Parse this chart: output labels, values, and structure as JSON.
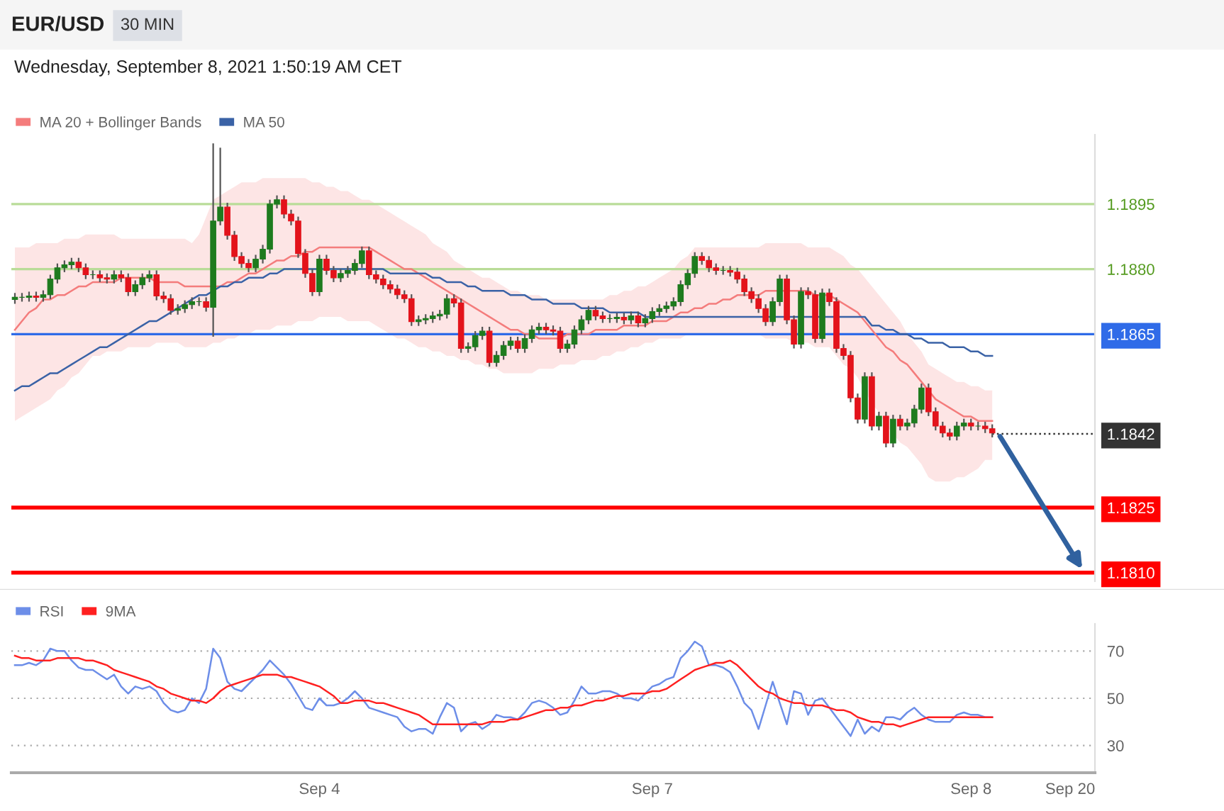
{
  "chart_data": [
    {
      "type": "candlestick",
      "title": "EUR/USD",
      "subtitle": "Wednesday, September 8, 2021 1:50:19 AM CET",
      "annotations": [
        "30 MIN"
      ],
      "categories": [
        null,
        null,
        null,
        null,
        null,
        null,
        null,
        null,
        null,
        null,
        null,
        null,
        null,
        null,
        null,
        null,
        null,
        null,
        null,
        null,
        null,
        null,
        null,
        null,
        null,
        null,
        null,
        null,
        null,
        null,
        null,
        null,
        null,
        null,
        null,
        null,
        null,
        null,
        null,
        null,
        null,
        null,
        null,
        null,
        null,
        null,
        null,
        null,
        null,
        null,
        null,
        null,
        null,
        null,
        null,
        null,
        null,
        null,
        null,
        null,
        null,
        null,
        null,
        null,
        null,
        null,
        null,
        null,
        null,
        null,
        null,
        null,
        null,
        null,
        null,
        null,
        null,
        null,
        null,
        null,
        null,
        null,
        null,
        null,
        null,
        null,
        null,
        null,
        null,
        null,
        null,
        null,
        null,
        null,
        null,
        null,
        null,
        null,
        null,
        null,
        null,
        null,
        null,
        null,
        null,
        null,
        null,
        null,
        null,
        null,
        null,
        null,
        null,
        null,
        null,
        null,
        null,
        null,
        null,
        null,
        null,
        null,
        null,
        null,
        null,
        null,
        null,
        null,
        null,
        null,
        null,
        null,
        null,
        null,
        null,
        null,
        null,
        null,
        null,
        null,
        null,
        null,
        null,
        null,
        null,
        null,
        null,
        null,
        null,
        null,
        null,
        null,
        null
      ],
      "colors": [
        "#1e7b1e",
        "#1e7b1e",
        "#1e7b1e",
        "#e3131b",
        "#1e7b1e",
        "#1e7b1e",
        "#1e7b1e",
        "#1e7b1e",
        "#1e7b1e",
        "#e3131b",
        "#e3131b",
        "#1e7b1e",
        "#e3131b",
        "#e3131b",
        "#1e7b1e",
        "#e3131b",
        "#e3131b",
        "#1e7b1e",
        "#1e7b1e",
        "#1e7b1e",
        "#e3131b",
        "#e3131b",
        "#e3131b",
        "#1e7b1e",
        "#1e7b1e",
        "#1e7b1e",
        "#1e7b1e",
        "#e3131b",
        "#1e7b1e",
        "#1e7b1e",
        "#e3131b",
        "#e3131b",
        "#e3131b",
        "#e3131b",
        "#1e7b1e",
        "#1e7b1e",
        "#1e7b1e",
        "#1e7b1e",
        "#e3131b",
        "#e3131b",
        "#e3131b",
        "#e3131b",
        "#e3131b",
        "#1e7b1e",
        "#e3131b",
        "#e3131b",
        "#1e7b1e",
        "#1e7b1e",
        "#1e7b1e",
        "#1e7b1e",
        "#e3131b",
        "#e3131b",
        "#e3131b",
        "#e3131b",
        "#e3131b",
        "#e3131b",
        "#e3131b",
        "#1e7b1e",
        "#1e7b1e",
        "#1e7b1e",
        "#1e7b1e",
        "#1e7b1e",
        "#e3131b",
        "#e3131b",
        "#1e7b1e",
        "#1e7b1e",
        "#1e7b1e",
        "#e3131b",
        "#1e7b1e",
        "#1e7b1e",
        "#1e7b1e",
        "#e3131b",
        "#1e7b1e",
        "#1e7b1e",
        "#1e7b1e",
        "#e3131b",
        "#e3131b",
        "#e3131b",
        "#1e7b1e",
        "#1e7b1e",
        "#1e7b1e",
        "#1e7b1e",
        "#e3131b",
        "#e3131b",
        "#1e7b1e",
        "#1e7b1e",
        "#e3131b",
        "#1e7b1e",
        "#e3131b",
        "#1e7b1e",
        "#1e7b1e",
        "#1e7b1e",
        "#1e7b1e",
        "#1e7b1e",
        "#1e7b1e",
        "#1e7b1e",
        "#1e7b1e",
        "#e3131b",
        "#e3131b",
        "#e3131b",
        "#1e7b1e",
        "#e3131b",
        "#e3131b",
        "#e3131b",
        "#e3131b",
        "#e3131b",
        "#e3131b",
        "#1e7b1e",
        "#1e7b1e",
        "#e3131b",
        "#e3131b",
        "#1e7b1e",
        "#e3131b",
        "#e3131b",
        "#1e7b1e",
        "#e3131b",
        "#e3131b",
        "#e3131b",
        "#e3131b",
        "#e3131b",
        "#1e7b1e",
        "#e3131b",
        "#1e7b1e",
        "#e3131b",
        "#1e7b1e",
        "#e3131b",
        "#1e7b1e",
        "#1e7b1e",
        "#1e7b1e",
        "#e3131b",
        "#e3131b",
        "#e3131b",
        "#e3131b",
        "#1e7b1e",
        "#1e7b1e",
        "#e3131b",
        "#1e7b1e",
        "#e3131b",
        "#e3131b",
        null,
        null,
        null,
        null,
        null,
        null,
        null,
        null,
        null,
        null,
        null,
        null,
        null,
        null
      ],
      "ohlc": [
        [
          1.1873,
          1.18745,
          1.1872,
          1.18735
        ],
        [
          1.18735,
          1.18745,
          1.18725,
          1.18735
        ],
        [
          1.18735,
          1.18748,
          1.18725,
          1.18738
        ],
        [
          1.18738,
          1.18748,
          1.18725,
          1.18735
        ],
        [
          1.18735,
          1.18751,
          1.18725,
          1.18741
        ],
        [
          1.18741,
          1.18787,
          1.18731,
          1.18777
        ],
        [
          1.18777,
          1.18813,
          1.18767,
          1.18803
        ],
        [
          1.18803,
          1.1882,
          1.18793,
          1.1881
        ],
        [
          1.1881,
          1.18826,
          1.188,
          1.18816
        ],
        [
          1.18816,
          1.18826,
          1.18793,
          1.18803
        ],
        [
          1.18803,
          1.18813,
          1.18777,
          1.18787
        ],
        [
          1.18787,
          1.18797,
          1.18777,
          1.18787
        ],
        [
          1.18787,
          1.18797,
          1.1877,
          1.1878
        ],
        [
          1.1878,
          1.1879,
          1.18767,
          1.18777
        ],
        [
          1.18777,
          1.18797,
          1.18767,
          1.18787
        ],
        [
          1.18787,
          1.18797,
          1.1877,
          1.1878
        ],
        [
          1.1878,
          1.1879,
          1.18738,
          1.18748
        ],
        [
          1.18748,
          1.18774,
          1.18738,
          1.18764
        ],
        [
          1.18764,
          1.1879,
          1.18754,
          1.1878
        ],
        [
          1.1878,
          1.18797,
          1.1877,
          1.18787
        ],
        [
          1.18787,
          1.18797,
          1.18728,
          1.18738
        ],
        [
          1.18738,
          1.18748,
          1.18722,
          1.18732
        ],
        [
          1.18732,
          1.18742,
          1.18695,
          1.18705
        ],
        [
          1.18705,
          1.18719,
          1.18695,
          1.18709
        ],
        [
          1.18709,
          1.18728,
          1.18699,
          1.18718
        ],
        [
          1.18718,
          1.18735,
          1.18708,
          1.18725
        ],
        [
          1.18725,
          1.18735,
          1.18715,
          1.18725
        ],
        [
          1.18725,
          1.18735,
          1.18702,
          1.18712
        ],
        [
          1.18712,
          1.1909,
          1.18644,
          1.18911
        ],
        [
          1.18911,
          1.1908,
          1.18901,
          1.18943
        ],
        [
          1.18943,
          1.18953,
          1.18868,
          1.18878
        ],
        [
          1.18878,
          1.18888,
          1.18819,
          1.18829
        ],
        [
          1.18829,
          1.18839,
          1.18803,
          1.18813
        ],
        [
          1.18813,
          1.18823,
          1.18793,
          1.18803
        ],
        [
          1.18803,
          1.18833,
          1.18793,
          1.18823
        ],
        [
          1.18823,
          1.18856,
          1.18813,
          1.18846
        ],
        [
          1.18846,
          1.1896,
          1.18836,
          1.1895
        ],
        [
          1.1895,
          1.1897,
          1.1894,
          1.1896
        ],
        [
          1.1896,
          1.1897,
          1.18917,
          1.18927
        ],
        [
          1.18927,
          1.18937,
          1.18901,
          1.18911
        ],
        [
          1.18911,
          1.18921,
          1.18826,
          1.18836
        ],
        [
          1.18836,
          1.18846,
          1.1878,
          1.1879
        ],
        [
          1.1879,
          1.188,
          1.18738,
          1.18748
        ],
        [
          1.18748,
          1.18833,
          1.18738,
          1.18823
        ],
        [
          1.18823,
          1.18833,
          1.18787,
          1.18797
        ],
        [
          1.18797,
          1.18807,
          1.1877,
          1.1878
        ],
        [
          1.1878,
          1.188,
          1.1877,
          1.1879
        ],
        [
          1.1879,
          1.18807,
          1.1878,
          1.18797
        ],
        [
          1.18797,
          1.18823,
          1.18787,
          1.18813
        ],
        [
          1.18813,
          1.18852,
          1.18803,
          1.18842
        ],
        [
          1.18842,
          1.18852,
          1.18777,
          1.18787
        ],
        [
          1.18787,
          1.18797,
          1.18767,
          1.18777
        ],
        [
          1.18777,
          1.18787,
          1.18754,
          1.18764
        ],
        [
          1.18764,
          1.18774,
          1.18744,
          1.18754
        ],
        [
          1.18754,
          1.18764,
          1.18731,
          1.18741
        ],
        [
          1.18741,
          1.18751,
          1.18722,
          1.18732
        ],
        [
          1.18732,
          1.18742,
          1.18669,
          1.18679
        ],
        [
          1.18679,
          1.18693,
          1.18669,
          1.18683
        ],
        [
          1.18683,
          1.18696,
          1.18673,
          1.18686
        ],
        [
          1.18686,
          1.18702,
          1.18676,
          1.18692
        ],
        [
          1.18692,
          1.18706,
          1.18682,
          1.18696
        ],
        [
          1.18696,
          1.18742,
          1.18686,
          1.18732
        ],
        [
          1.18732,
          1.18742,
          1.18712,
          1.18722
        ],
        [
          1.18722,
          1.18732,
          1.18607,
          1.18617
        ],
        [
          1.18617,
          1.18631,
          1.18607,
          1.18621
        ],
        [
          1.18621,
          1.18657,
          1.18611,
          1.18647
        ],
        [
          1.18647,
          1.18667,
          1.18637,
          1.18657
        ],
        [
          1.18657,
          1.18667,
          1.18575,
          1.18585
        ],
        [
          1.18585,
          1.18611,
          1.18575,
          1.18601
        ],
        [
          1.18601,
          1.18634,
          1.18591,
          1.18624
        ],
        [
          1.18624,
          1.18644,
          1.18614,
          1.18634
        ],
        [
          1.18634,
          1.18644,
          1.18607,
          1.18617
        ],
        [
          1.18617,
          1.1865,
          1.18607,
          1.1864
        ],
        [
          1.1864,
          1.1867,
          1.1863,
          1.1866
        ],
        [
          1.1866,
          1.18676,
          1.1865,
          1.18666
        ],
        [
          1.18666,
          1.18676,
          1.1865,
          1.1866
        ],
        [
          1.1866,
          1.1867,
          1.18647,
          1.18657
        ],
        [
          1.18657,
          1.18667,
          1.18607,
          1.18617
        ],
        [
          1.18617,
          1.18637,
          1.18607,
          1.18627
        ],
        [
          1.18627,
          1.1867,
          1.18617,
          1.1866
        ],
        [
          1.1866,
          1.18693,
          1.1865,
          1.18683
        ],
        [
          1.18683,
          1.18715,
          1.18673,
          1.18705
        ],
        [
          1.18705,
          1.18715,
          1.18682,
          1.18692
        ],
        [
          1.18692,
          1.18702,
          1.18676,
          1.18686
        ],
        [
          1.18686,
          1.18696,
          1.18676,
          1.18686
        ],
        [
          1.18686,
          1.18699,
          1.18676,
          1.18689
        ],
        [
          1.18689,
          1.18699,
          1.18673,
          1.18683
        ],
        [
          1.18683,
          1.18702,
          1.18673,
          1.18692
        ],
        [
          1.18692,
          1.18702,
          1.18666,
          1.18676
        ],
        [
          1.18676,
          1.18696,
          1.18666,
          1.18686
        ],
        [
          1.18686,
          1.18712,
          1.18676,
          1.18702
        ],
        [
          1.18702,
          1.18719,
          1.18692,
          1.18709
        ],
        [
          1.18709,
          1.18725,
          1.18699,
          1.18715
        ],
        [
          1.18715,
          1.18735,
          1.18705,
          1.18725
        ],
        [
          1.18725,
          1.18774,
          1.18715,
          1.18764
        ],
        [
          1.18764,
          1.188,
          1.18754,
          1.1879
        ],
        [
          1.1879,
          1.18839,
          1.1878,
          1.18829
        ],
        [
          1.18829,
          1.18839,
          1.1881,
          1.1882
        ],
        [
          1.1882,
          1.1883,
          1.18793,
          1.18803
        ],
        [
          1.18803,
          1.18813,
          1.18787,
          1.18797
        ],
        [
          1.18797,
          1.18807,
          1.18787,
          1.18797
        ],
        [
          1.18797,
          1.18807,
          1.18783,
          1.18793
        ],
        [
          1.18793,
          1.18803,
          1.18767,
          1.18777
        ],
        [
          1.18777,
          1.18787,
          1.18738,
          1.18748
        ],
        [
          1.18748,
          1.18758,
          1.18722,
          1.18732
        ],
        [
          1.18732,
          1.18742,
          1.18699,
          1.18709
        ],
        [
          1.18709,
          1.18719,
          1.18669,
          1.18679
        ],
        [
          1.18679,
          1.18735,
          1.18669,
          1.18725
        ],
        [
          1.18725,
          1.18787,
          1.18715,
          1.18777
        ],
        [
          1.18777,
          1.18787,
          1.18673,
          1.18683
        ],
        [
          1.18683,
          1.18693,
          1.18617,
          1.18627
        ],
        [
          1.18627,
          1.18758,
          1.18617,
          1.18748
        ],
        [
          1.18748,
          1.18758,
          1.18731,
          1.18741
        ],
        [
          1.18741,
          1.18751,
          1.1863,
          1.1864
        ],
        [
          1.1864,
          1.18755,
          1.1863,
          1.18745
        ],
        [
          1.18745,
          1.18755,
          1.18715,
          1.18725
        ],
        [
          1.18725,
          1.18735,
          1.18607,
          1.18617
        ],
        [
          1.18617,
          1.18627,
          1.18591,
          1.18601
        ],
        [
          1.18601,
          1.18611,
          1.18493,
          1.18503
        ],
        [
          1.18503,
          1.18513,
          1.18444,
          1.18454
        ],
        [
          1.18454,
          1.18562,
          1.18444,
          1.18552
        ],
        [
          1.18552,
          1.18562,
          1.18428,
          1.18438
        ],
        [
          1.18438,
          1.18471,
          1.18428,
          1.18461
        ],
        [
          1.18461,
          1.18471,
          1.18389,
          1.18399
        ],
        [
          1.18399,
          1.18464,
          1.18389,
          1.18454
        ],
        [
          1.18454,
          1.18464,
          1.18428,
          1.18438
        ],
        [
          1.18438,
          1.18455,
          1.18428,
          1.18445
        ],
        [
          1.18445,
          1.18487,
          1.18435,
          1.18477
        ],
        [
          1.18477,
          1.18536,
          1.18467,
          1.18526
        ],
        [
          1.18526,
          1.18536,
          1.18461,
          1.18471
        ],
        [
          1.18471,
          1.18481,
          1.18428,
          1.18438
        ],
        [
          1.18438,
          1.18448,
          1.18412,
          1.18422
        ],
        [
          1.18422,
          1.18432,
          1.18405,
          1.18415
        ],
        [
          1.18415,
          1.18448,
          1.18405,
          1.18438
        ],
        [
          1.18438,
          1.18455,
          1.18428,
          1.18445
        ],
        [
          1.18445,
          1.18455,
          1.18428,
          1.18438
        ],
        [
          1.18438,
          1.18448,
          1.18428,
          1.18438
        ],
        [
          1.18438,
          1.18448,
          1.18422,
          1.18432
        ],
        [
          1.18432,
          1.18442,
          1.18412,
          1.18422
        ],
        null,
        null,
        null,
        null,
        null,
        null,
        null,
        null,
        null,
        null,
        null,
        null,
        null,
        null
      ],
      "series": [
        {
          "type": "line",
          "name": "MA 20 + Bollinger Bands",
          "color": "#f47c7c",
          "values": [
            1.1866,
            1.1868,
            1.187,
            1.1871,
            1.1873,
            1.1873,
            1.1874,
            1.1874,
            1.1875,
            1.1876,
            1.1876,
            1.1877,
            1.1877,
            1.1877,
            1.1877,
            1.1878,
            1.1878,
            1.1878,
            1.1878,
            1.1878,
            1.1877,
            1.1877,
            1.1877,
            1.1877,
            1.1876,
            1.1876,
            1.1876,
            1.1876,
            1.1876,
            1.1876,
            1.1877,
            1.1877,
            1.1878,
            1.1879,
            1.1879,
            1.188,
            1.1881,
            1.1882,
            1.1882,
            1.1883,
            1.1883,
            1.1884,
            1.1884,
            1.1885,
            1.1885,
            1.1885,
            1.1885,
            1.1885,
            1.1885,
            1.1885,
            1.1885,
            1.1884,
            1.1883,
            1.1882,
            1.1881,
            1.188,
            1.188,
            1.1879,
            1.1878,
            1.1877,
            1.1876,
            1.1875,
            1.1874,
            1.1873,
            1.1872,
            1.1871,
            1.187,
            1.1869,
            1.1868,
            1.1867,
            1.1866,
            1.1866,
            1.1865,
            1.1865,
            1.1864,
            1.1864,
            1.1864,
            1.1864,
            1.1865,
            1.1865,
            1.1865,
            1.1865,
            1.1866,
            1.1866,
            1.1866,
            1.1866,
            1.1867,
            1.1867,
            1.1867,
            1.1867,
            1.1868,
            1.1868,
            1.1868,
            1.1869,
            1.187,
            1.187,
            1.1871,
            1.1871,
            1.1872,
            1.1872,
            1.1873,
            1.1873,
            1.1874,
            1.1874,
            1.1874,
            1.1874,
            1.1875,
            1.1875,
            1.1875,
            1.1875,
            1.1875,
            1.1875,
            1.1875,
            1.1874,
            1.1874,
            1.1874,
            1.1873,
            1.1872,
            1.1871,
            1.187,
            1.1868,
            1.1866,
            1.1864,
            1.1862,
            1.1861,
            1.1859,
            1.1858,
            1.1856,
            1.1854,
            1.1852,
            1.185,
            1.1849,
            1.1848,
            1.1847,
            1.1846,
            1.1846,
            1.1845,
            1.1845,
            1.1845,
            null,
            null,
            null,
            null,
            null,
            null,
            null,
            null,
            null,
            null,
            null,
            null,
            null,
            null
          ],
          "upper": [
            1.1885,
            1.1885,
            1.1885,
            1.1886,
            1.1886,
            1.1886,
            1.1886,
            1.1887,
            1.1887,
            1.1887,
            1.1888,
            1.1888,
            1.1888,
            1.1888,
            1.1888,
            1.1887,
            1.1887,
            1.1887,
            1.1887,
            1.1887,
            1.1887,
            1.1887,
            1.1887,
            1.1887,
            1.1887,
            1.1886,
            1.1888,
            1.1892,
            1.1896,
            1.1897,
            1.1898,
            1.1899,
            1.19,
            1.19,
            1.19,
            1.1901,
            1.1901,
            1.1901,
            1.1901,
            1.1901,
            1.1901,
            1.1901,
            1.19,
            1.19,
            1.1899,
            1.1899,
            1.1898,
            1.1898,
            1.1897,
            1.1896,
            1.1896,
            1.1895,
            1.1894,
            1.1893,
            1.1892,
            1.1891,
            1.189,
            1.1889,
            1.1888,
            1.1886,
            1.1885,
            1.1884,
            1.1882,
            1.1881,
            1.188,
            1.1879,
            1.1878,
            1.1878,
            1.1877,
            1.1876,
            1.1875,
            1.1875,
            1.1874,
            1.1874,
            1.1874,
            1.1873,
            1.1873,
            1.1873,
            1.1873,
            1.1873,
            1.1873,
            1.1873,
            1.1873,
            1.1873,
            1.1874,
            1.1874,
            1.1875,
            1.1875,
            1.1876,
            1.1876,
            1.1877,
            1.1878,
            1.1879,
            1.188,
            1.1882,
            1.1883,
            1.1885,
            1.1885,
            1.1885,
            1.1885,
            1.1885,
            1.1885,
            1.1885,
            1.1885,
            1.1885,
            1.1885,
            1.1886,
            1.1886,
            1.1886,
            1.1886,
            1.1886,
            1.1886,
            1.1885,
            1.1885,
            1.1885,
            1.1885,
            1.1884,
            1.1883,
            1.1881,
            1.188,
            1.1878,
            1.1876,
            1.1874,
            1.1872,
            1.187,
            1.1868,
            1.1865,
            1.1863,
            1.1861,
            1.1858,
            1.1857,
            1.1856,
            1.1855,
            1.1854,
            1.1854,
            1.1853,
            1.1853,
            1.1852,
            1.1852,
            null,
            null,
            null,
            null,
            null,
            null,
            null,
            null,
            null,
            null,
            null,
            null,
            null,
            null
          ],
          "lower": [
            1.1845,
            1.1846,
            1.1847,
            1.1848,
            1.1849,
            1.185,
            1.1852,
            1.1853,
            1.1855,
            1.1856,
            1.1858,
            1.186,
            1.186,
            1.1861,
            1.1861,
            1.1861,
            1.1862,
            1.1862,
            1.1862,
            1.1862,
            1.1863,
            1.1863,
            1.1863,
            1.1863,
            1.1862,
            1.1862,
            1.1862,
            1.1862,
            1.1863,
            1.1863,
            1.1864,
            1.1864,
            1.1865,
            1.1865,
            1.1866,
            1.1866,
            1.1866,
            1.1867,
            1.1867,
            1.1867,
            1.1868,
            1.1868,
            1.1868,
            1.1869,
            1.1869,
            1.1869,
            1.1869,
            1.1868,
            1.1868,
            1.1868,
            1.1868,
            1.1867,
            1.1866,
            1.1865,
            1.1864,
            1.1864,
            1.1863,
            1.1862,
            1.1862,
            1.1861,
            1.1861,
            1.186,
            1.186,
            1.1859,
            1.1859,
            1.1858,
            1.1858,
            1.1857,
            1.1857,
            1.1856,
            1.1856,
            1.1856,
            1.1856,
            1.1856,
            1.1857,
            1.1857,
            1.1857,
            1.1858,
            1.1858,
            1.1858,
            1.1859,
            1.1859,
            1.1859,
            1.186,
            1.186,
            1.1861,
            1.1861,
            1.1862,
            1.1862,
            1.1863,
            1.1863,
            1.1864,
            1.1864,
            1.1864,
            1.1864,
            1.1865,
            1.1865,
            1.1865,
            1.1865,
            1.1865,
            1.1865,
            1.1865,
            1.1865,
            1.1865,
            1.1865,
            1.1865,
            1.1864,
            1.1864,
            1.1864,
            1.1864,
            1.1863,
            1.1863,
            1.1863,
            1.1862,
            1.1862,
            1.1862,
            1.186,
            1.1858,
            1.1857,
            1.1855,
            1.1852,
            1.1849,
            1.1847,
            1.1844,
            1.1842,
            1.184,
            1.1839,
            1.1837,
            1.1835,
            1.1832,
            1.1831,
            1.1831,
            1.1831,
            1.1832,
            1.1832,
            1.1833,
            1.1834,
            1.1836,
            1.1836,
            null,
            null,
            null,
            null,
            null,
            null,
            null,
            null,
            null,
            null,
            null,
            null,
            null,
            null
          ]
        },
        {
          "type": "line",
          "name": "MA 50",
          "color": "#3a62a6",
          "values": [
            1.1852,
            1.1853,
            1.1853,
            1.1854,
            1.1855,
            1.1856,
            1.1856,
            1.1857,
            1.1858,
            1.1859,
            1.186,
            1.1861,
            1.1862,
            1.1862,
            1.1863,
            1.1864,
            1.1865,
            1.1866,
            1.1867,
            1.1868,
            1.1868,
            1.1869,
            1.187,
            1.1871,
            1.1872,
            1.1873,
            1.1874,
            1.1874,
            1.1875,
            1.1876,
            1.1876,
            1.1877,
            1.1877,
            1.1878,
            1.1878,
            1.1878,
            1.1879,
            1.1879,
            1.188,
            1.188,
            1.188,
            1.188,
            1.188,
            1.188,
            1.188,
            1.188,
            1.188,
            1.188,
            1.188,
            1.188,
            1.188,
            1.188,
            1.188,
            1.1879,
            1.1879,
            1.1879,
            1.1879,
            1.1879,
            1.1879,
            1.1878,
            1.1878,
            1.1877,
            1.1877,
            1.1877,
            1.1876,
            1.1876,
            1.1875,
            1.1875,
            1.1875,
            1.1875,
            1.1874,
            1.1874,
            1.1874,
            1.1873,
            1.1873,
            1.1873,
            1.1872,
            1.1872,
            1.1872,
            1.1872,
            1.1871,
            1.1871,
            1.1871,
            1.1871,
            1.187,
            1.187,
            1.187,
            1.187,
            1.187,
            1.1869,
            1.1869,
            1.1869,
            1.1869,
            1.1869,
            1.1869,
            1.1869,
            1.1869,
            1.1869,
            1.1869,
            1.1869,
            1.1869,
            1.1869,
            1.1869,
            1.1869,
            1.1869,
            1.1869,
            1.1869,
            1.1869,
            1.1869,
            1.1869,
            1.1869,
            1.1869,
            1.1869,
            1.1869,
            1.1869,
            1.1869,
            1.1869,
            1.1869,
            1.1869,
            1.1869,
            1.1869,
            1.1867,
            1.1867,
            1.1866,
            1.1866,
            1.1865,
            1.1865,
            1.1864,
            1.1864,
            1.1863,
            1.1863,
            1.1863,
            1.1862,
            1.1862,
            1.1862,
            1.1861,
            1.1861,
            1.186,
            1.186,
            null,
            null,
            null,
            null,
            null,
            null,
            null,
            null,
            null,
            null,
            null,
            null,
            null,
            null
          ]
        }
      ],
      "ref_lines": [
        {
          "axis": "y",
          "value": 1.1895,
          "color": "#b9dc98"
        },
        {
          "axis": "y",
          "value": 1.188,
          "color": "#b9dc98"
        },
        {
          "axis": "y",
          "value": 1.1865,
          "color": "#2f6be8"
        },
        {
          "axis": "y",
          "value": 1.1842,
          "color": "#333333",
          "line_style": "dotted"
        },
        {
          "axis": "y",
          "value": 1.1825,
          "color": "#ff0000"
        },
        {
          "axis": "y",
          "value": 1.181,
          "color": "#ff0000"
        }
      ],
      "ylim": [
        1.1808,
        1.1911
      ],
      "yticks": [
        1.1895,
        {
          "value": 1.188,
          "label": "1.1880"
        },
        1.1865,
        1.1842,
        1.1825,
        {
          "value": 1.181,
          "label": "1.1810"
        }
      ],
      "tick_labels": "y",
      "legend": "top left"
    },
    {
      "type": "line",
      "categories": [
        null,
        null,
        null,
        null,
        null,
        null,
        null,
        null,
        null,
        null,
        null,
        null,
        null,
        null,
        null,
        null,
        null,
        null,
        null,
        null,
        null,
        null,
        null,
        null,
        null,
        null,
        null,
        null,
        null,
        null,
        null,
        null,
        null,
        null,
        null,
        null,
        null,
        null,
        null,
        null,
        null,
        null,
        null,
        "Sep 4",
        null,
        null,
        null,
        null,
        null,
        null,
        null,
        null,
        null,
        null,
        null,
        null,
        null,
        null,
        null,
        null,
        null,
        null,
        null,
        null,
        null,
        null,
        null,
        null,
        null,
        null,
        null,
        null,
        null,
        null,
        null,
        null,
        null,
        null,
        null,
        null,
        null,
        null,
        null,
        null,
        null,
        null,
        null,
        null,
        null,
        null,
        "Sep 7",
        null,
        null,
        null,
        null,
        null,
        null,
        null,
        null,
        null,
        null,
        null,
        null,
        null,
        null,
        null,
        null,
        null,
        null,
        null,
        null,
        null,
        null,
        null,
        null,
        null,
        null,
        null,
        null,
        null,
        null,
        null,
        null,
        null,
        null,
        null,
        null,
        null,
        null,
        null,
        null,
        null,
        null,
        null,
        null,
        "Sep 8",
        null,
        null,
        null,
        null,
        null,
        null,
        null,
        null,
        null,
        null,
        null,
        null,
        null,
        "Sep 20",
        null,
        null,
        null
      ],
      "series": [
        {
          "name": "RSI",
          "color": "#6d8ee8",
          "values": [
            64,
            64,
            65,
            64,
            66,
            71,
            70,
            70,
            66,
            63,
            62,
            62,
            60,
            58,
            60,
            55,
            52,
            55,
            54,
            55,
            53,
            48,
            45,
            44,
            45,
            50,
            48,
            54,
            71,
            67,
            57,
            54,
            53,
            56,
            59,
            62,
            66,
            63,
            60,
            56,
            51,
            46,
            45,
            50,
            47,
            47,
            48,
            50,
            53,
            50,
            46,
            45,
            44,
            43,
            42,
            38,
            36,
            37,
            37,
            35,
            42,
            48,
            46,
            36,
            39,
            40,
            37,
            39,
            43,
            42,
            42,
            41,
            44,
            48,
            49,
            48,
            46,
            43,
            44,
            49,
            55,
            52,
            52,
            53,
            53,
            52,
            50,
            50,
            49,
            52,
            55,
            56,
            58,
            59,
            67,
            70,
            74,
            72,
            64,
            64,
            63,
            61,
            55,
            48,
            45,
            37,
            47,
            57,
            48,
            39,
            53,
            52,
            43,
            49,
            50,
            46,
            42,
            38,
            34,
            41,
            35,
            38,
            36,
            42,
            42,
            41,
            44,
            46,
            43,
            41,
            40,
            40,
            40,
            43,
            44,
            43,
            43,
            42,
            42,
            null,
            null,
            null,
            null,
            null,
            null,
            null,
            null,
            null,
            null,
            null,
            null,
            null,
            null
          ]
        },
        {
          "name": "9MA",
          "color": "#ff2020",
          "values": [
            68,
            67,
            67,
            66,
            66,
            66,
            67,
            67,
            67,
            67,
            66,
            66,
            65,
            64,
            62,
            61,
            60,
            59,
            58,
            57,
            55,
            54,
            52,
            51,
            50,
            49,
            49,
            48,
            50,
            53,
            55,
            56,
            57,
            58,
            59,
            60,
            60,
            60,
            59,
            59,
            58,
            57,
            56,
            55,
            53,
            51,
            48,
            48,
            49,
            49,
            49,
            48,
            48,
            47,
            46,
            45,
            44,
            43,
            41,
            39,
            39,
            39,
            39,
            39,
            39,
            39,
            39,
            40,
            40,
            40,
            41,
            41,
            42,
            43,
            44,
            45,
            45,
            46,
            46,
            47,
            47,
            48,
            49,
            49,
            50,
            51,
            51,
            52,
            52,
            52,
            53,
            53,
            54,
            56,
            58,
            60,
            62,
            63,
            64,
            65,
            65,
            66,
            64,
            61,
            58,
            55,
            53,
            52,
            50,
            49,
            48,
            48,
            47,
            47,
            47,
            46,
            45,
            45,
            44,
            42,
            41,
            40,
            40,
            39,
            39,
            38,
            39,
            40,
            41,
            42,
            42,
            42,
            42,
            42,
            42,
            42,
            42,
            42,
            42,
            null,
            null,
            null,
            null,
            null,
            null,
            null,
            null,
            null,
            null,
            null,
            null,
            null,
            null
          ]
        }
      ],
      "ylim": [
        18.5,
        81.5
      ],
      "yticks": [
        30,
        50,
        70
      ],
      "grid": "y",
      "legend": "top left"
    }
  ]
}
